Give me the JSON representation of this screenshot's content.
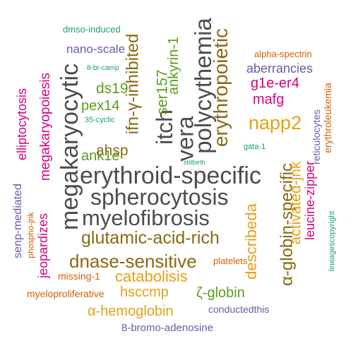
{
  "palette": {
    "gray": "#4d4d4d",
    "brown": "#8b6914",
    "gold": "#e6a117",
    "green": "#5a9e1a",
    "magenta": "#d6007e",
    "purple": "#6a5ba6",
    "orange": "#d95f02",
    "teal": "#1b9e77"
  },
  "words": [
    {
      "text": "erythroid-specific",
      "color": "#4d4d4d",
      "rotated": false
    },
    {
      "text": "spherocytosis",
      "color": "#4d4d4d",
      "rotated": false
    },
    {
      "text": "myelofibrosis",
      "color": "#4d4d4d",
      "rotated": false
    },
    {
      "text": "megakaryocytic",
      "color": "#4d4d4d",
      "rotated": true
    },
    {
      "text": "polycythemia",
      "color": "#4d4d4d",
      "rotated": true
    },
    {
      "text": "vera",
      "color": "#4d4d4d",
      "rotated": true
    },
    {
      "text": "itch",
      "color": "#4d4d4d",
      "rotated": true
    },
    {
      "text": "glutamic-acid-rich",
      "color": "#8b6914",
      "rotated": false
    },
    {
      "text": "dnase-sensitive",
      "color": "#8b6914",
      "rotated": false
    },
    {
      "text": "ifn-γ-inhibited",
      "color": "#8b6914",
      "rotated": true
    },
    {
      "text": "erythropoietic",
      "color": "#8b6914",
      "rotated": true
    },
    {
      "text": "ahsp",
      "color": "#8b6914",
      "rotated": false
    },
    {
      "text": "α-globin-specific",
      "color": "#8b6914",
      "rotated": true
    },
    {
      "text": "describeda",
      "color": "#e6a117",
      "rotated": true
    },
    {
      "text": "napp2",
      "color": "#e6a117",
      "rotated": false
    },
    {
      "text": "activated-jnk",
      "color": "#e6a117",
      "rotated": true
    },
    {
      "text": "catabolisis",
      "color": "#e6a117",
      "rotated": false
    },
    {
      "text": "hsccmp",
      "color": "#e6a117",
      "rotated": false
    },
    {
      "text": "α-hemoglobin",
      "color": "#e6a117",
      "rotated": false
    },
    {
      "text": "ds19",
      "color": "#5a9e1a",
      "rotated": false
    },
    {
      "text": "pex14",
      "color": "#5a9e1a",
      "rotated": false
    },
    {
      "text": "ank1e",
      "color": "#5a9e1a",
      "rotated": false
    },
    {
      "text": "ser157",
      "color": "#5a9e1a",
      "rotated": true
    },
    {
      "text": "ankyrin-1",
      "color": "#5a9e1a",
      "rotated": true
    },
    {
      "text": "ζ-globin",
      "color": "#5a9e1a",
      "rotated": false
    },
    {
      "text": "megakaryopoiesis",
      "color": "#d6007e",
      "rotated": true
    },
    {
      "text": "elliptocytosis",
      "color": "#d6007e",
      "rotated": true
    },
    {
      "text": "jeopardizes",
      "color": "#d6007e",
      "rotated": true
    },
    {
      "text": "leucine-zipper",
      "color": "#d6007e",
      "rotated": true
    },
    {
      "text": "g1e-er4",
      "color": "#d6007e",
      "rotated": false
    },
    {
      "text": "mafg",
      "color": "#d6007e",
      "rotated": false
    },
    {
      "text": "nano-scale",
      "color": "#6a5ba6",
      "rotated": false
    },
    {
      "text": "aberrancies",
      "color": "#6a5ba6",
      "rotated": false
    },
    {
      "text": "senp-mediated",
      "color": "#6a5ba6",
      "rotated": true
    },
    {
      "text": "reticulocytes",
      "color": "#6a5ba6",
      "rotated": true
    },
    {
      "text": "conductedthis",
      "color": "#6a5ba6",
      "rotated": false
    },
    {
      "text": "8-bromo-adenosine",
      "color": "#6a5ba6",
      "rotated": false
    },
    {
      "text": "alpha-spectrin",
      "color": "#d95f02",
      "rotated": false
    },
    {
      "text": "erythroleukemia",
      "color": "#d95f02",
      "rotated": true
    },
    {
      "text": "missing-1",
      "color": "#d95f02",
      "rotated": false
    },
    {
      "text": "platelets",
      "color": "#d95f02",
      "rotated": false
    },
    {
      "text": "myeloproliferative",
      "color": "#d95f02",
      "rotated": false
    },
    {
      "text": "phospho-jnk",
      "color": "#d95f02",
      "rotated": true
    },
    {
      "text": "dmso-induced",
      "color": "#1b9e77",
      "rotated": false
    },
    {
      "text": "8-br-camp",
      "color": "#1b9e77",
      "rotated": false
    },
    {
      "text": "35-cyclic",
      "color": "#1b9e77",
      "rotated": false
    },
    {
      "text": "gata-1",
      "color": "#1b9e77",
      "rotated": false
    },
    {
      "text": "stillbirth",
      "color": "#1b9e77",
      "rotated": false
    },
    {
      "text": "lineagescopyright",
      "color": "#1b9e77",
      "rotated": true
    }
  ]
}
